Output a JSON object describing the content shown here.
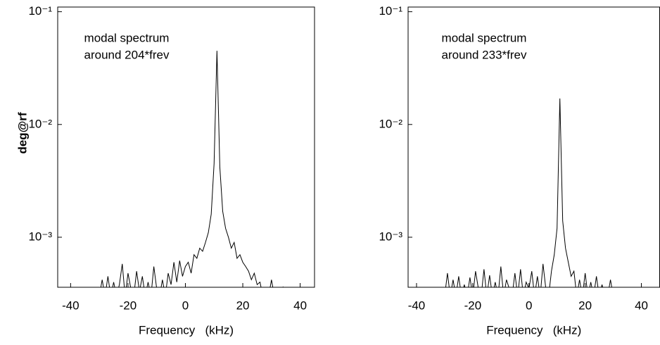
{
  "chart_data": [
    {
      "type": "line",
      "ylabel": "deg@rf",
      "xlabel": "Frequency   (kHz)",
      "annotations": [
        "modal spectrum",
        "around 204*frev"
      ],
      "log_y": true,
      "xlim": [
        -44.5,
        45
      ],
      "ylim": [
        0.00036,
        0.11
      ],
      "xticks": [
        -40,
        -20,
        0,
        20,
        40
      ],
      "yticks": [
        {
          "value": 0.1,
          "label": "10⁻¹"
        },
        {
          "value": 0.01,
          "label": "10⁻²"
        },
        {
          "value": 0.001,
          "label": "10⁻³"
        }
      ],
      "x": [
        -30,
        -29,
        -28,
        -27,
        -26,
        -25,
        -24,
        -23,
        -22,
        -21,
        -20,
        -19,
        -18,
        -17,
        -16,
        -15,
        -14,
        -13,
        -12,
        -11,
        -10,
        -9,
        -8,
        -7,
        -6,
        -5,
        -4,
        -3,
        -2,
        -1,
        0,
        1,
        2,
        3,
        4,
        5,
        6,
        7,
        8,
        9,
        10,
        11,
        12,
        13,
        14,
        15,
        16,
        17,
        18,
        19,
        20,
        21,
        22,
        23,
        24,
        25,
        26,
        27,
        28,
        29,
        30,
        31,
        32,
        33,
        34,
        35
      ],
      "series": [
        {
          "color": "#000000",
          "values": [
            0.0003,
            0.00042,
            0.0003,
            0.00045,
            0.0003,
            0.0004,
            0.0003,
            0.00038,
            0.00058,
            0.0003,
            0.00048,
            0.00035,
            0.0003,
            0.0005,
            0.00033,
            0.00045,
            0.0003,
            0.0004,
            0.0003,
            0.00055,
            0.00035,
            0.0003,
            0.00042,
            0.0003,
            0.00048,
            0.00038,
            0.0006,
            0.0004,
            0.00062,
            0.00045,
            0.00055,
            0.0006,
            0.00048,
            0.0007,
            0.00065,
            0.0008,
            0.00075,
            0.0009,
            0.0011,
            0.0016,
            0.0045,
            0.045,
            0.0042,
            0.0017,
            0.0012,
            0.001,
            0.0008,
            0.0009,
            0.00065,
            0.0007,
            0.0006,
            0.00055,
            0.0005,
            0.00042,
            0.00048,
            0.00038,
            0.0004,
            0.0003,
            0.00035,
            0.0003,
            0.00042,
            0.0003,
            0.00033,
            0.0003,
            0.00036,
            0.0003
          ]
        }
      ]
    },
    {
      "type": "line",
      "xlabel": "Frequency   (kHz)",
      "annotations": [
        "modal spectrum",
        "around 233*frev"
      ],
      "log_y": true,
      "xlim": [
        -43,
        46.5
      ],
      "ylim": [
        0.00036,
        0.11
      ],
      "xticks": [
        -40,
        -20,
        0,
        20,
        40
      ],
      "yticks": [
        {
          "value": 0.1,
          "label": "10⁻¹"
        },
        {
          "value": 0.01,
          "label": "10⁻²"
        },
        {
          "value": 0.001,
          "label": "10⁻³"
        }
      ],
      "x": [
        -30,
        -29,
        -28,
        -27,
        -26,
        -25,
        -24,
        -23,
        -22,
        -21,
        -20,
        -19,
        -18,
        -17,
        -16,
        -15,
        -14,
        -13,
        -12,
        -11,
        -10,
        -9,
        -8,
        -7,
        -6,
        -5,
        -4,
        -3,
        -2,
        -1,
        0,
        1,
        2,
        3,
        4,
        5,
        6,
        7,
        8,
        9,
        10,
        11,
        12,
        13,
        14,
        15,
        16,
        17,
        18,
        19,
        20,
        21,
        22,
        23,
        24,
        25,
        26,
        27,
        28,
        29,
        30,
        31,
        32
      ],
      "series": [
        {
          "color": "#000000",
          "values": [
            0.0003,
            0.00048,
            0.0003,
            0.00042,
            0.0003,
            0.00045,
            0.0003,
            0.00038,
            0.0003,
            0.00044,
            0.0003,
            0.0005,
            0.00035,
            0.0003,
            0.00052,
            0.0003,
            0.00046,
            0.0003,
            0.0004,
            0.0003,
            0.00055,
            0.0003,
            0.00042,
            0.00035,
            0.0003,
            0.00048,
            0.0003,
            0.00052,
            0.0003,
            0.0004,
            0.00035,
            0.0005,
            0.0003,
            0.00045,
            0.0003,
            0.00058,
            0.00035,
            0.0003,
            0.0005,
            0.0007,
            0.0012,
            0.017,
            0.0014,
            0.0008,
            0.0006,
            0.00045,
            0.0005,
            0.0003,
            0.00042,
            0.0003,
            0.00048,
            0.0003,
            0.0004,
            0.0003,
            0.00045,
            0.0003,
            0.00038,
            0.0003,
            0.0003,
            0.00042,
            0.0003,
            0.00035,
            0.0003
          ]
        }
      ]
    }
  ]
}
